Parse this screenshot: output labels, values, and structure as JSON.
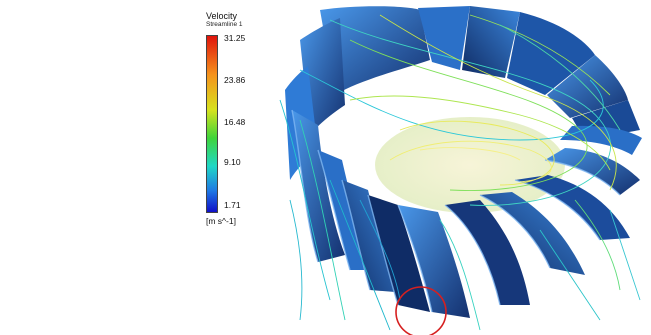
{
  "legend": {
    "variable": "Velocity",
    "subtitle": "Streamline 1",
    "ticks": [
      "31.25",
      "23.86",
      "16.48",
      "9.10",
      "1.71"
    ],
    "unit": "[m s^-1]",
    "colormap": [
      "#e0140c",
      "#f5931d",
      "#d7e21f",
      "#3fd43a",
      "#20d7c6",
      "#1f78e4",
      "#1010c8"
    ]
  },
  "colors": {
    "blade_dark": "#102a66",
    "blade_light": "#3b8be0",
    "highlight_circle": "#d62020"
  }
}
